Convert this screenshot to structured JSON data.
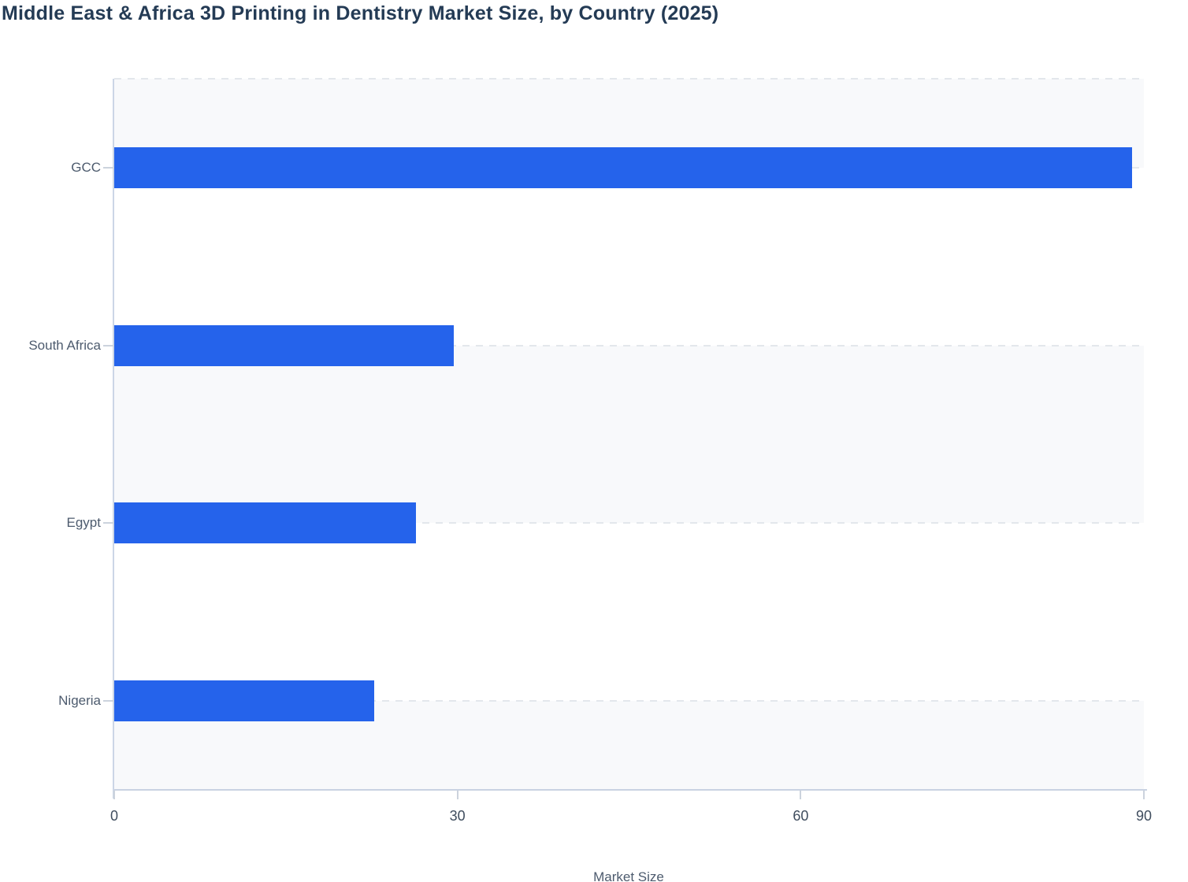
{
  "chart_data": {
    "type": "bar",
    "orientation": "horizontal",
    "title": "Middle East & Africa 3D Printing in Dentistry Market Size, by Country (2025)",
    "categories": [
      "GCC",
      "South Africa",
      "Egypt",
      "Nigeria"
    ],
    "values": [
      89,
      29.7,
      26.4,
      22.7
    ],
    "xlabel": "Market Size",
    "x_ticks": [
      0,
      30,
      60,
      90
    ],
    "xlim": [
      0,
      90
    ],
    "grid": "horizontal dashed gridlines at category centers, alternating row shading",
    "legend": "none",
    "colors": {
      "bar": "#2563eb",
      "band": "#f8f9fb",
      "grid": "#e3e7ec",
      "y_axis_line": "#ccd6e6",
      "x_axis_line": "#c9d2e2",
      "tick_mark": "#ccd3dd",
      "title_text": "#243b55",
      "category_label": "#4d5b6e",
      "tick_label": "#3f4d5e"
    }
  }
}
